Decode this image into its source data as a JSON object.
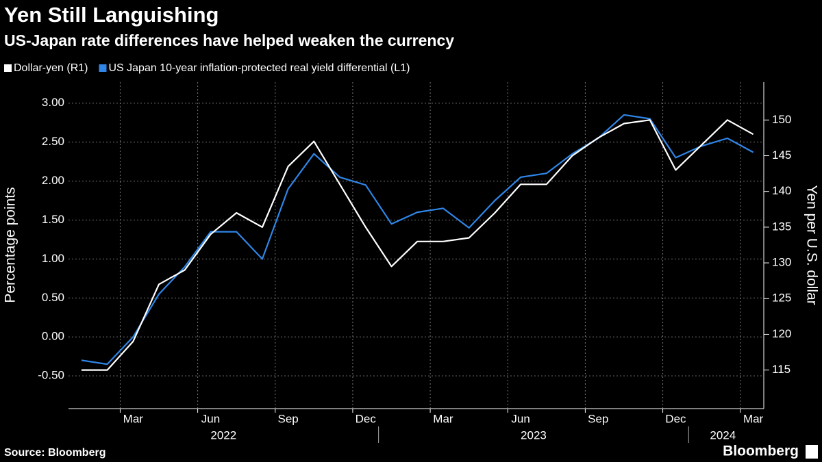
{
  "chart_data": {
    "type": "line",
    "title": "Yen Still Languishing",
    "subtitle": "US-Japan rate differences have helped weaken the currency",
    "y_label": "Percentage points",
    "y2_label": "Yen per U.S. dollar",
    "source": "Source: Bloomberg",
    "brand": "Bloomberg",
    "x": [
      "2022-01",
      "2022-02",
      "2022-03",
      "2022-04",
      "2022-05",
      "2022-06",
      "2022-07",
      "2022-08",
      "2022-09",
      "2022-10",
      "2022-11",
      "2022-12",
      "2023-01",
      "2023-02",
      "2023-03",
      "2023-04",
      "2023-05",
      "2023-06",
      "2023-07",
      "2023-08",
      "2023-09",
      "2023-10",
      "2023-11",
      "2023-12",
      "2024-01",
      "2024-02",
      "2024-03"
    ],
    "series": [
      {
        "name": "Dollar-yen (R1)",
        "color": "#ffffff",
        "axis": "y2",
        "values": [
          115,
          115,
          119,
          127,
          129,
          134,
          137,
          135,
          143.5,
          147,
          141,
          135,
          129.5,
          133,
          133,
          133.5,
          137,
          141,
          141,
          145,
          147.5,
          149.5,
          150,
          143,
          146.5,
          150,
          148
        ]
      },
      {
        "name": "US Japan 10-year inflation-protected real yield differential (L1)",
        "color": "#2f86e8",
        "values": [
          -0.3,
          -0.35,
          0.0,
          0.55,
          0.9,
          1.35,
          1.35,
          1.0,
          1.9,
          2.35,
          2.05,
          1.95,
          1.45,
          1.6,
          1.65,
          1.4,
          1.75,
          2.05,
          2.1,
          2.35,
          2.55,
          2.85,
          2.8,
          2.3,
          2.45,
          2.55,
          2.37
        ]
      }
    ],
    "ylim": [
      -0.92,
      3.27
    ],
    "yticks": [
      {
        "value": -0.5,
        "label": "-0.50"
      },
      {
        "value": 0,
        "label": "0.00"
      },
      {
        "value": 0.5,
        "label": "0.50"
      },
      {
        "value": 1,
        "label": "1.00"
      },
      {
        "value": 1.5,
        "label": "1.50"
      },
      {
        "value": 2,
        "label": "2.00"
      },
      {
        "value": 2.5,
        "label": "2.50"
      },
      {
        "value": 3,
        "label": "3.00"
      }
    ],
    "y2lim": [
      109.6,
      155.3
    ],
    "y2ticks": [
      115,
      120,
      125,
      130,
      135,
      140,
      145,
      150
    ],
    "xticks": [
      {
        "value": "2022-03",
        "label": "Mar"
      },
      {
        "value": "2022-06",
        "label": "Jun"
      },
      {
        "value": "2022-09",
        "label": "Sep"
      },
      {
        "value": "2022-12",
        "label": "Dec"
      },
      {
        "value": "2023-03",
        "label": "Mar"
      },
      {
        "value": "2023-06",
        "label": "Jun"
      },
      {
        "value": "2023-09",
        "label": "Sep"
      },
      {
        "value": "2023-12",
        "label": "Dec"
      },
      {
        "value": "2024-03",
        "label": "Mar"
      }
    ],
    "year_labels": [
      "2022",
      "2023",
      "2024"
    ],
    "grid": true
  }
}
